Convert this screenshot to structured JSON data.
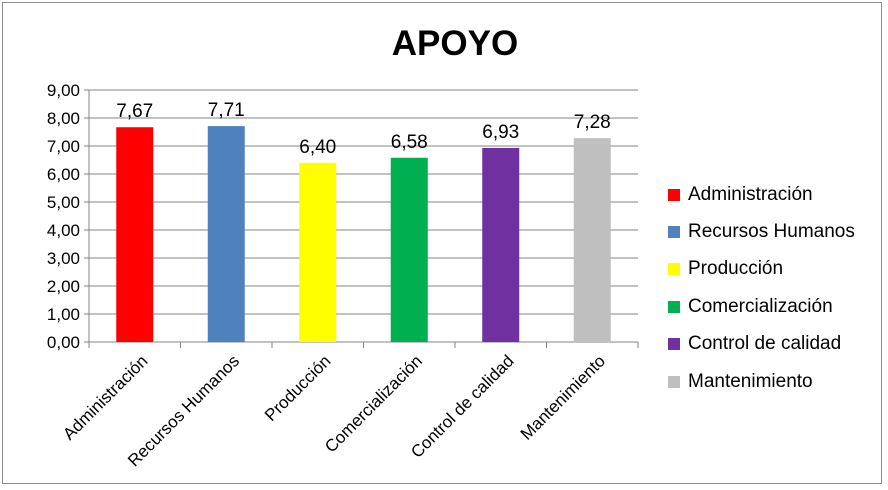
{
  "chart_data": {
    "type": "bar",
    "title": "APOYO",
    "categories": [
      "Administración",
      "Recursos Humanos",
      "Producción",
      "Comercialización",
      "Control de calidad",
      "Mantenimiento"
    ],
    "values": [
      7.67,
      7.71,
      6.4,
      6.58,
      6.93,
      7.28
    ],
    "value_labels": [
      "7,67",
      "7,71",
      "6,40",
      "6,58",
      "6,93",
      "7,28"
    ],
    "colors": [
      "#ff0000",
      "#4f81bd",
      "#ffff00",
      "#00b050",
      "#7030a0",
      "#bfbfbf"
    ],
    "ylim": [
      0,
      9
    ],
    "yticks": [
      0,
      1,
      2,
      3,
      4,
      5,
      6,
      7,
      8,
      9
    ],
    "ytick_labels": [
      "0,00",
      "1,00",
      "2,00",
      "3,00",
      "4,00",
      "5,00",
      "6,00",
      "7,00",
      "8,00",
      "9,00"
    ],
    "xlabel": "",
    "ylabel": "",
    "grid": true,
    "legend_position": "right",
    "legend": [
      "Administración",
      "Recursos Humanos",
      "Producción",
      "Comercialización",
      "Control de calidad",
      "Mantenimiento"
    ]
  }
}
